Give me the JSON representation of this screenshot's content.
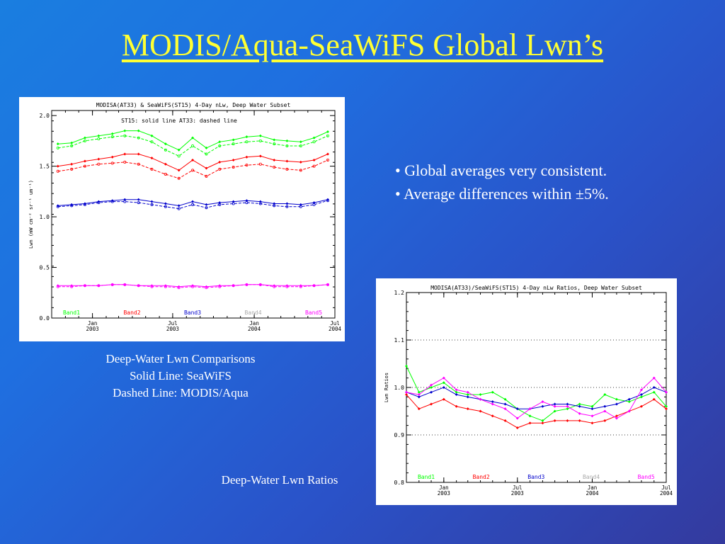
{
  "slide": {
    "title": "MODIS/Aqua-SeaWiFS Global Lwn’s",
    "bullets": [
      "• Global averages very consistent.",
      "• Average differences within ±5%."
    ],
    "caption_left": [
      "Deep-Water Lwn Comparisons",
      "Solid Line: SeaWiFS",
      "Dashed Line: MODIS/Aqua"
    ],
    "caption_right": "Deep-Water Lwn Ratios"
  },
  "colors": {
    "Band1": "#00ff00",
    "Band2": "#ff0000",
    "Band3": "#0000cc",
    "Band4": "#aaaaaa",
    "Band5": "#ff00ff"
  },
  "chart_data": [
    {
      "type": "line",
      "title": "MODISA(AT33) & SeaWiFS(ST15) 4-Day nLw, Deep Water Subset",
      "annotation": "ST15: solid line   AT33: dashed line",
      "ylabel": "Lwn (mW cm⁻² sr⁻¹ um⁻¹)",
      "ylim": [
        0.0,
        2.05
      ],
      "yticks": [
        "0.0",
        "0.5",
        "1.0",
        "1.5",
        "2.0"
      ],
      "xrange": [
        "2002-10-01",
        "2004-07-01"
      ],
      "xticks": [
        {
          "date": "2003-01-01",
          "line1": "Jan",
          "line2": "2003"
        },
        {
          "date": "2003-07-01",
          "line1": "Jul",
          "line2": "2003"
        },
        {
          "date": "2004-01-01",
          "line1": "Jan",
          "line2": "2004"
        },
        {
          "date": "2004-07-01",
          "line1": "Jul",
          "line2": "2004"
        }
      ],
      "x": [
        "2002-10-15",
        "2002-11-15",
        "2002-12-15",
        "2003-01-15",
        "2003-02-15",
        "2003-03-15",
        "2003-04-15",
        "2003-05-15",
        "2003-06-15",
        "2003-07-15",
        "2003-08-15",
        "2003-09-15",
        "2003-10-15",
        "2003-11-15",
        "2003-12-15",
        "2004-01-15",
        "2004-02-15",
        "2004-03-15",
        "2004-04-15",
        "2004-05-15",
        "2004-06-15"
      ],
      "series": [
        {
          "name": "Band1",
          "style": "solid",
          "values": [
            1.72,
            1.73,
            1.78,
            1.8,
            1.82,
            1.85,
            1.85,
            1.8,
            1.72,
            1.66,
            1.78,
            1.68,
            1.74,
            1.76,
            1.79,
            1.8,
            1.76,
            1.75,
            1.74,
            1.78,
            1.84
          ]
        },
        {
          "name": "Band1",
          "style": "dashed",
          "values": [
            1.68,
            1.7,
            1.75,
            1.77,
            1.79,
            1.8,
            1.78,
            1.74,
            1.66,
            1.6,
            1.7,
            1.62,
            1.7,
            1.72,
            1.74,
            1.75,
            1.72,
            1.7,
            1.7,
            1.74,
            1.8
          ]
        },
        {
          "name": "Band2",
          "style": "solid",
          "values": [
            1.5,
            1.52,
            1.55,
            1.57,
            1.59,
            1.62,
            1.62,
            1.58,
            1.52,
            1.46,
            1.56,
            1.48,
            1.54,
            1.56,
            1.59,
            1.6,
            1.56,
            1.55,
            1.54,
            1.56,
            1.62
          ]
        },
        {
          "name": "Band2",
          "style": "dashed",
          "values": [
            1.45,
            1.47,
            1.5,
            1.52,
            1.53,
            1.54,
            1.52,
            1.47,
            1.42,
            1.38,
            1.46,
            1.4,
            1.47,
            1.49,
            1.51,
            1.52,
            1.49,
            1.47,
            1.46,
            1.5,
            1.56
          ]
        },
        {
          "name": "Band3",
          "style": "solid",
          "values": [
            1.11,
            1.12,
            1.13,
            1.15,
            1.16,
            1.17,
            1.17,
            1.15,
            1.13,
            1.11,
            1.15,
            1.12,
            1.14,
            1.15,
            1.16,
            1.15,
            1.13,
            1.13,
            1.12,
            1.14,
            1.17
          ]
        },
        {
          "name": "Band3",
          "style": "dashed",
          "values": [
            1.1,
            1.11,
            1.12,
            1.14,
            1.15,
            1.15,
            1.14,
            1.12,
            1.1,
            1.08,
            1.12,
            1.09,
            1.12,
            1.13,
            1.14,
            1.13,
            1.11,
            1.1,
            1.1,
            1.12,
            1.16
          ]
        },
        {
          "name": "Band5",
          "style": "solid",
          "values": [
            0.32,
            0.32,
            0.32,
            0.32,
            0.33,
            0.33,
            0.32,
            0.32,
            0.32,
            0.31,
            0.32,
            0.31,
            0.32,
            0.32,
            0.33,
            0.33,
            0.32,
            0.32,
            0.32,
            0.32,
            0.33
          ]
        },
        {
          "name": "Band5",
          "style": "dashed",
          "values": [
            0.31,
            0.31,
            0.32,
            0.32,
            0.33,
            0.33,
            0.32,
            0.31,
            0.31,
            0.3,
            0.31,
            0.3,
            0.31,
            0.32,
            0.33,
            0.33,
            0.31,
            0.31,
            0.31,
            0.32,
            0.33
          ]
        }
      ],
      "legend": [
        "Band1",
        "Band2",
        "Band3",
        "Band4",
        "Band5"
      ],
      "legend_placement": "bottom",
      "grid": false
    },
    {
      "type": "line",
      "title": "MODISA(AT33)/SeaWiFS(ST15) 4-Day nLw Ratios, Deep Water Subset",
      "ylabel": "Lwn Ratios",
      "ylim": [
        0.8,
        1.2
      ],
      "yticks": [
        "0.8",
        "0.9",
        "1.0",
        "1.1",
        "1.2"
      ],
      "gridlines_y": [
        0.9,
        1.0,
        1.1
      ],
      "xrange": [
        "2002-10-01",
        "2004-07-01"
      ],
      "xticks": [
        {
          "date": "2003-01-01",
          "line1": "Jan",
          "line2": "2003"
        },
        {
          "date": "2003-07-01",
          "line1": "Jul",
          "line2": "2003"
        },
        {
          "date": "2004-01-01",
          "line1": "Jan",
          "line2": "2004"
        },
        {
          "date": "2004-07-01",
          "line1": "Jul",
          "line2": "2004"
        }
      ],
      "x": [
        "2002-10-01",
        "2002-11-01",
        "2002-12-01",
        "2003-01-01",
        "2003-02-01",
        "2003-03-01",
        "2003-04-01",
        "2003-05-01",
        "2003-06-01",
        "2003-07-01",
        "2003-08-01",
        "2003-09-01",
        "2003-10-01",
        "2003-11-01",
        "2003-12-01",
        "2004-01-01",
        "2004-02-01",
        "2004-03-01",
        "2004-04-01",
        "2004-05-01",
        "2004-06-01",
        "2004-07-01"
      ],
      "series": [
        {
          "name": "Band1",
          "values": [
            1.045,
            0.99,
            1.0,
            1.01,
            0.99,
            0.985,
            0.985,
            0.99,
            0.975,
            0.955,
            0.94,
            0.93,
            0.95,
            0.955,
            0.965,
            0.96,
            0.985,
            0.975,
            0.97,
            0.98,
            0.99,
            0.96
          ]
        },
        {
          "name": "Band2",
          "values": [
            0.985,
            0.955,
            0.965,
            0.975,
            0.96,
            0.955,
            0.95,
            0.94,
            0.93,
            0.915,
            0.925,
            0.925,
            0.93,
            0.93,
            0.93,
            0.925,
            0.93,
            0.94,
            0.95,
            0.96,
            0.975,
            0.955
          ]
        },
        {
          "name": "Band3",
          "values": [
            0.99,
            0.98,
            0.99,
            1.0,
            0.985,
            0.98,
            0.975,
            0.97,
            0.965,
            0.955,
            0.955,
            0.96,
            0.965,
            0.965,
            0.96,
            0.955,
            0.96,
            0.965,
            0.975,
            0.985,
            1.0,
            0.99
          ]
        },
        {
          "name": "Band5",
          "values": [
            0.99,
            0.985,
            1.005,
            1.02,
            0.995,
            0.99,
            0.975,
            0.965,
            0.955,
            0.935,
            0.955,
            0.97,
            0.96,
            0.96,
            0.945,
            0.94,
            0.95,
            0.935,
            0.95,
            0.995,
            1.02,
            0.99
          ]
        }
      ],
      "legend": [
        "Band1",
        "Band2",
        "Band3",
        "Band4",
        "Band5"
      ],
      "legend_placement": "bottom",
      "grid": true
    }
  ]
}
